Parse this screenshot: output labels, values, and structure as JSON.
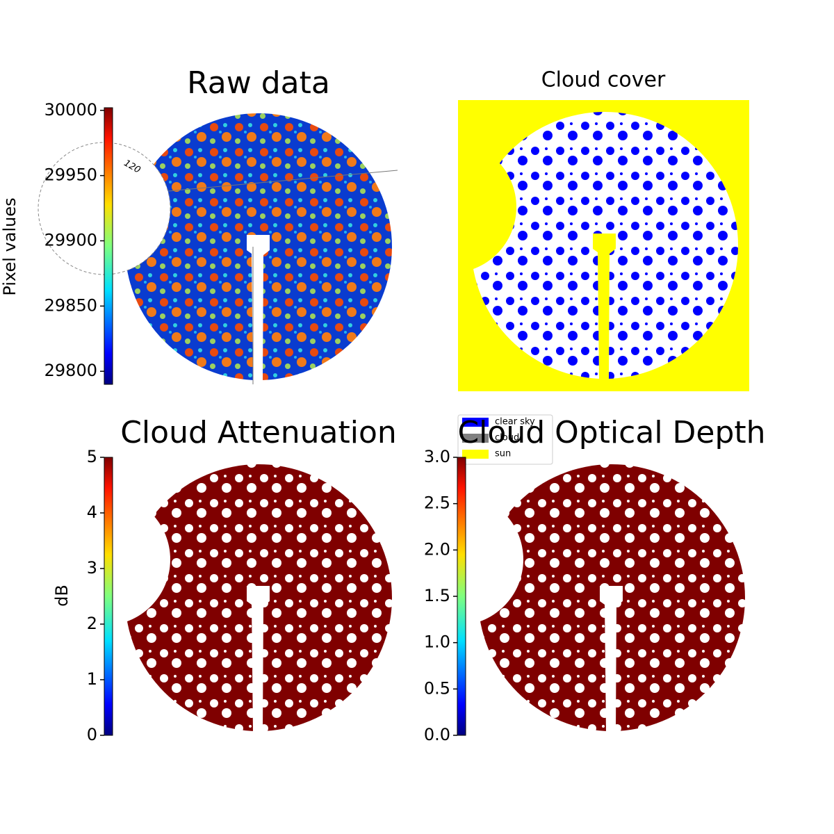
{
  "chart_data": [
    {
      "type": "image",
      "title": "Raw data",
      "annotation": "120",
      "colorbar": {
        "label": "Pixel values",
        "colormap": "jet",
        "lim": [
          29790,
          30002
        ],
        "ticks": [
          29800,
          29850,
          29900,
          29950,
          30000
        ]
      }
    },
    {
      "type": "image",
      "title": "Cloud cover",
      "legend": [
        {
          "name": "clear sky",
          "color": "#0000ff"
        },
        {
          "name": "cloud",
          "color": "#808080"
        },
        {
          "name": "sun",
          "color": "#ffff00"
        }
      ]
    },
    {
      "type": "image",
      "title": "Cloud Attenuation",
      "colorbar": {
        "label": "dB",
        "colormap": "jet",
        "lim": [
          0,
          5
        ],
        "ticks": [
          0,
          1,
          2,
          3,
          4,
          5
        ]
      }
    },
    {
      "type": "image",
      "title": "Cloud Optical Depth",
      "colorbar": {
        "colormap": "jet",
        "lim": [
          0,
          3
        ],
        "ticks": [
          {
            "value": 0,
            "label": "0.0"
          },
          0.5,
          {
            "value": 1,
            "label": "1.0"
          },
          1.5,
          {
            "value": 2,
            "label": "2.0"
          },
          2.5,
          {
            "value": 3,
            "label": "3.0"
          }
        ]
      }
    }
  ]
}
